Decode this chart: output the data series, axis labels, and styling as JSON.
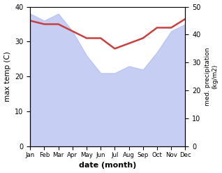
{
  "months": [
    "Jan",
    "Feb",
    "Mar",
    "Apr",
    "May",
    "Jun",
    "Jul",
    "Aug",
    "Sep",
    "Oct",
    "Nov",
    "Dec"
  ],
  "month_x": [
    0,
    1,
    2,
    3,
    4,
    5,
    6,
    7,
    8,
    9,
    10,
    11
  ],
  "temp_max": [
    36,
    35,
    35,
    33,
    31,
    31,
    28,
    29.5,
    31,
    34,
    34,
    36.5
  ],
  "precip": [
    38,
    36,
    38,
    33,
    26,
    21,
    21,
    23,
    22,
    27,
    33,
    35
  ],
  "temp_ylim": [
    0,
    40
  ],
  "precip_ylim": [
    0,
    50
  ],
  "fill_color": "#b3bef0",
  "fill_alpha": 0.75,
  "line_color": "#c94040",
  "line_width": 1.8,
  "xlabel": "date (month)",
  "ylabel_left": "max temp (C)",
  "ylabel_right": "med. precipitation\n(kg/m2)",
  "bg_color": "#ffffff",
  "left_ticks": [
    0,
    10,
    20,
    30,
    40
  ],
  "right_ticks": [
    0,
    10,
    20,
    30,
    40,
    50
  ]
}
